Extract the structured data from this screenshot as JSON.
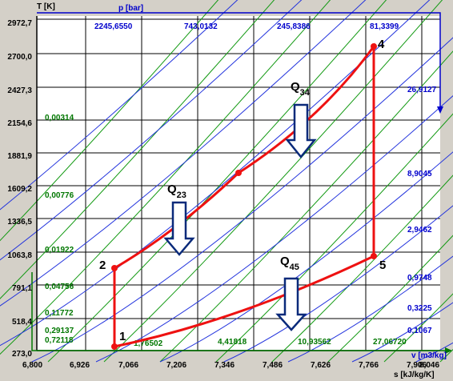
{
  "chart_data": {
    "type": "diagram",
    "axes": {
      "y_title": "T [K]",
      "x_title": "s [kJ/kg/K]",
      "p_title": "p [bar]",
      "v_title": "v [m3/kg]",
      "y_ticks": [
        "2972,7",
        "2700,0",
        "2427,3",
        "2154,6",
        "1881,9",
        "1609,2",
        "1336,5",
        "1063,8",
        "791,1",
        "518,4",
        "273,0"
      ],
      "x_ticks": [
        "6,800",
        "6,926",
        "7,066",
        "7,206",
        "7,346",
        "7,486",
        "7,626",
        "7,766",
        "7,906",
        "8,046"
      ]
    },
    "isobar_labels": [
      "2245,6550",
      "743,0132",
      "245,8386",
      "81,3399",
      "26,9127",
      "8,9045",
      "2,9462",
      "0,9748",
      "0,3225",
      "0,1067"
    ],
    "isochore_labels": [
      "0,00314",
      "0,00776",
      "0,01922",
      "0,04756",
      "0,11772",
      "0,29137",
      "0,72118",
      "1,76502",
      "4,41818",
      "10,93562",
      "27,06720"
    ],
    "cycle_points": [
      "1",
      "2",
      "4",
      "5"
    ],
    "heat_labels": [
      {
        "main": "Q",
        "sub": "23"
      },
      {
        "main": "Q",
        "sub": "34"
      },
      {
        "main": "Q",
        "sub": "45"
      }
    ],
    "colors": {
      "cycle": "#ee1111",
      "isobar": "#2233dd",
      "isochore": "#119911",
      "grid": "#000000",
      "arrow": "#0a2a7a"
    }
  }
}
